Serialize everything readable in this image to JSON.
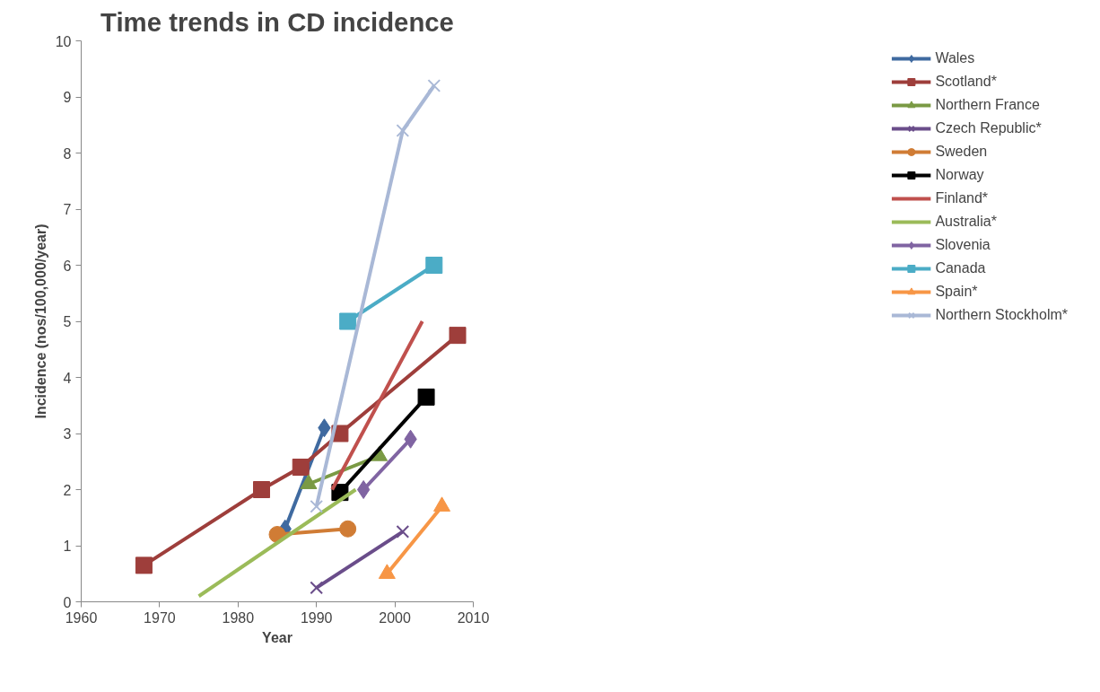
{
  "chart_data": {
    "type": "line",
    "title": "Time trends in CD incidence",
    "xlabel": "Year",
    "ylabel": "Incidence (nos/100,000/year)",
    "xlim": [
      1960,
      2010
    ],
    "xticks": [
      1960,
      1970,
      1980,
      1990,
      2000,
      2010
    ],
    "ylim": [
      0,
      10
    ],
    "yticks": [
      0,
      1,
      2,
      3,
      4,
      5,
      6,
      7,
      8,
      9,
      10
    ],
    "grid": false,
    "legend": "right",
    "series": [
      {
        "name": "Wales",
        "color": "#3f6aa0",
        "marker": "diamond",
        "x": [
          1986,
          1991
        ],
        "values": [
          1.3,
          3.1
        ]
      },
      {
        "name": "Scotland*",
        "color": "#9e3e3b",
        "marker": "square",
        "x": [
          1968,
          1983,
          1988,
          1993,
          2008
        ],
        "values": [
          0.65,
          2.0,
          2.4,
          3.0,
          4.75
        ]
      },
      {
        "name": "Northern France",
        "color": "#7a9a44",
        "marker": "triangle",
        "x": [
          1989,
          1998
        ],
        "values": [
          2.1,
          2.6
        ]
      },
      {
        "name": "Czech Republic*",
        "color": "#6a4d8a",
        "marker": "cross",
        "x": [
          1990,
          2001
        ],
        "values": [
          0.25,
          1.25
        ]
      },
      {
        "name": "Sweden",
        "color": "#d07c35",
        "marker": "circle",
        "x": [
          1985,
          1994
        ],
        "values": [
          1.2,
          1.3
        ]
      },
      {
        "name": "Norway",
        "color": "#000000",
        "marker": "square",
        "x": [
          1993,
          2004
        ],
        "values": [
          1.95,
          3.65
        ]
      },
      {
        "name": "Finland*",
        "color": "#c0504d",
        "marker": "none",
        "x": [
          1992,
          2003.5
        ],
        "values": [
          2.0,
          5.0
        ]
      },
      {
        "name": "Australia*",
        "color": "#9bbb59",
        "marker": "none",
        "x": [
          1975,
          1995
        ],
        "values": [
          0.1,
          2.0
        ]
      },
      {
        "name": "Slovenia",
        "color": "#8064a2",
        "marker": "diamond",
        "x": [
          1996,
          2002
        ],
        "values": [
          2.0,
          2.9
        ]
      },
      {
        "name": "Canada",
        "color": "#4bacc6",
        "marker": "square",
        "x": [
          1994,
          2005
        ],
        "values": [
          5.0,
          6.0
        ]
      },
      {
        "name": "Spain*",
        "color": "#f79646",
        "marker": "triangle",
        "x": [
          1999,
          2006
        ],
        "values": [
          0.5,
          1.7
        ]
      },
      {
        "name": "Northern Stockholm*",
        "color": "#a9b8d6",
        "marker": "cross",
        "x": [
          1990,
          2001,
          2005
        ],
        "values": [
          1.7,
          8.4,
          9.2
        ]
      }
    ]
  }
}
